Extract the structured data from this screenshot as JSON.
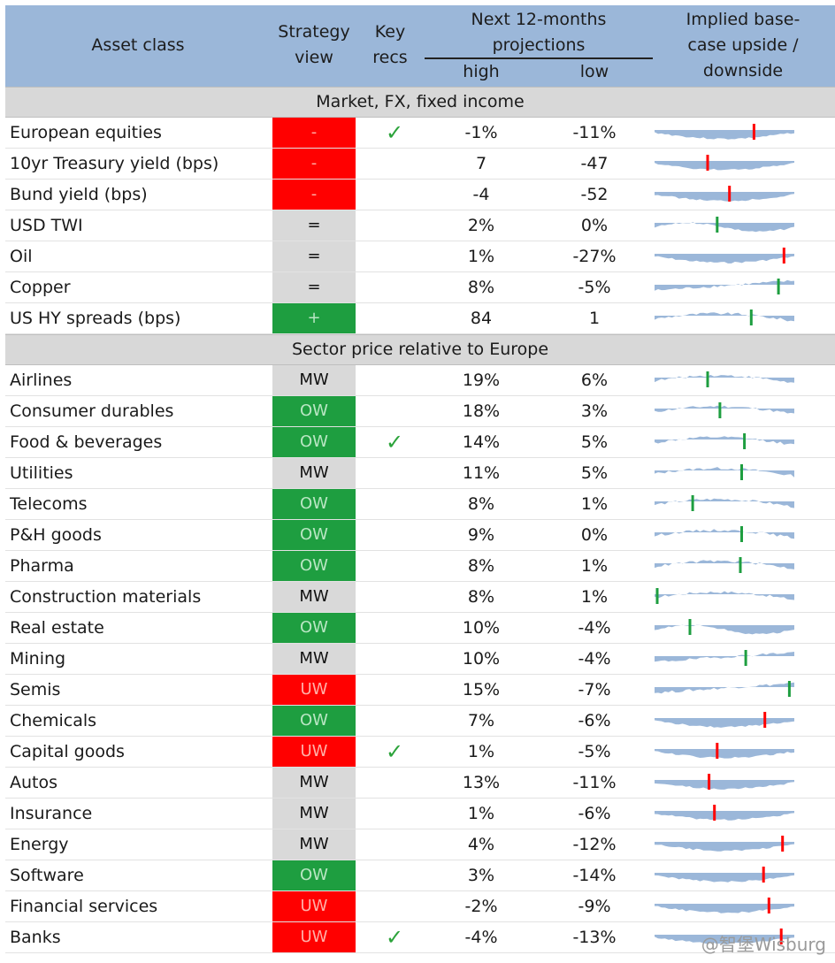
{
  "header": {
    "asset_class": "Asset class",
    "strategy_view": [
      "Strategy",
      "view"
    ],
    "key_recs": [
      "Key",
      "recs"
    ],
    "projections": [
      "Next 12-months",
      "projections"
    ],
    "high": "high",
    "low": "low",
    "implied": [
      "Implied base-",
      "case upside /",
      "downside"
    ]
  },
  "colors": {
    "red": "#ff0000",
    "green": "#1e9e40",
    "grey": "#d9d9d9",
    "header": "#9bb7d9",
    "spark": "#9bb7d9"
  },
  "sections": [
    {
      "title": "Market, FX, fixed income",
      "rows": [
        {
          "name": "European equities",
          "view": "-",
          "color": "red",
          "rec": true,
          "high": "-1%",
          "low": "-11%",
          "marker": 0.72,
          "mcolor": "red",
          "shape": "dn"
        },
        {
          "name": "10yr Treasury yield (bps)",
          "view": "-",
          "color": "red",
          "rec": false,
          "high": "7",
          "low": "-47",
          "marker": 0.38,
          "mcolor": "red",
          "shape": "dn"
        },
        {
          "name": "Bund yield (bps)",
          "view": "-",
          "color": "red",
          "rec": false,
          "high": "-4",
          "low": "-52",
          "marker": 0.54,
          "mcolor": "red",
          "shape": "dn"
        },
        {
          "name": "USD TWI",
          "view": "=",
          "color": "grey",
          "rec": false,
          "high": "2%",
          "low": "0%",
          "marker": 0.45,
          "mcolor": "green",
          "shape": "mix"
        },
        {
          "name": "Oil",
          "view": "=",
          "color": "grey",
          "rec": false,
          "high": "1%",
          "low": "-27%",
          "marker": 0.94,
          "mcolor": "red",
          "shape": "dn"
        },
        {
          "name": "Copper",
          "view": "=",
          "color": "grey",
          "rec": false,
          "high": "8%",
          "low": "-5%",
          "marker": 0.9,
          "mcolor": "green",
          "shape": "upr"
        },
        {
          "name": "US HY spreads (bps)",
          "view": "+",
          "color": "green",
          "rec": false,
          "high": "84",
          "low": "1",
          "marker": 0.7,
          "mcolor": "green",
          "shape": "up"
        }
      ]
    },
    {
      "title": "Sector price relative to Europe",
      "rows": [
        {
          "name": "Airlines",
          "view": "MW",
          "color": "grey",
          "rec": false,
          "high": "19%",
          "low": "6%",
          "marker": 0.38,
          "mcolor": "green",
          "shape": "up"
        },
        {
          "name": "Consumer durables",
          "view": "OW",
          "color": "green",
          "rec": false,
          "high": "18%",
          "low": "3%",
          "marker": 0.47,
          "mcolor": "green",
          "shape": "up"
        },
        {
          "name": "Food & beverages",
          "view": "OW",
          "color": "green",
          "rec": true,
          "high": "14%",
          "low": "5%",
          "marker": 0.65,
          "mcolor": "green",
          "shape": "up"
        },
        {
          "name": "Utilities",
          "view": "MW",
          "color": "grey",
          "rec": false,
          "high": "11%",
          "low": "5%",
          "marker": 0.63,
          "mcolor": "green",
          "shape": "up"
        },
        {
          "name": "Telecoms",
          "view": "OW",
          "color": "green",
          "rec": false,
          "high": "8%",
          "low": "1%",
          "marker": 0.27,
          "mcolor": "green",
          "shape": "up"
        },
        {
          "name": "P&H goods",
          "view": "OW",
          "color": "green",
          "rec": false,
          "high": "9%",
          "low": "0%",
          "marker": 0.63,
          "mcolor": "green",
          "shape": "up"
        },
        {
          "name": "Pharma",
          "view": "OW",
          "color": "green",
          "rec": false,
          "high": "8%",
          "low": "1%",
          "marker": 0.62,
          "mcolor": "green",
          "shape": "up"
        },
        {
          "name": "Construction materials",
          "view": "MW",
          "color": "grey",
          "rec": false,
          "high": "8%",
          "low": "1%",
          "marker": 0.01,
          "mcolor": "green",
          "shape": "up"
        },
        {
          "name": "Real estate",
          "view": "OW",
          "color": "green",
          "rec": false,
          "high": "10%",
          "low": "-4%",
          "marker": 0.25,
          "mcolor": "green",
          "shape": "mix"
        },
        {
          "name": "Mining",
          "view": "MW",
          "color": "grey",
          "rec": false,
          "high": "10%",
          "low": "-4%",
          "marker": 0.66,
          "mcolor": "green",
          "shape": "upr"
        },
        {
          "name": "Semis",
          "view": "UW",
          "color": "red",
          "rec": false,
          "high": "15%",
          "low": "-7%",
          "marker": 0.98,
          "mcolor": "green",
          "shape": "upr"
        },
        {
          "name": "Chemicals",
          "view": "OW",
          "color": "green",
          "rec": false,
          "high": "7%",
          "low": "-6%",
          "marker": 0.8,
          "mcolor": "red",
          "shape": "dn"
        },
        {
          "name": "Capital goods",
          "view": "UW",
          "color": "red",
          "rec": true,
          "high": "1%",
          "low": "-5%",
          "marker": 0.45,
          "mcolor": "red",
          "shape": "dn"
        },
        {
          "name": "Autos",
          "view": "MW",
          "color": "grey",
          "rec": false,
          "high": "13%",
          "low": "-11%",
          "marker": 0.39,
          "mcolor": "red",
          "shape": "dn"
        },
        {
          "name": "Insurance",
          "view": "MW",
          "color": "grey",
          "rec": false,
          "high": "1%",
          "low": "-6%",
          "marker": 0.43,
          "mcolor": "red",
          "shape": "dn"
        },
        {
          "name": "Energy",
          "view": "MW",
          "color": "grey",
          "rec": false,
          "high": "4%",
          "low": "-12%",
          "marker": 0.93,
          "mcolor": "red",
          "shape": "dn"
        },
        {
          "name": "Software",
          "view": "OW",
          "color": "green",
          "rec": false,
          "high": "3%",
          "low": "-14%",
          "marker": 0.79,
          "mcolor": "red",
          "shape": "dn"
        },
        {
          "name": "Financial services",
          "view": "UW",
          "color": "red",
          "rec": false,
          "high": "-2%",
          "low": "-9%",
          "marker": 0.83,
          "mcolor": "red",
          "shape": "dn"
        },
        {
          "name": "Banks",
          "view": "UW",
          "color": "red",
          "rec": true,
          "high": "-4%",
          "low": "-13%",
          "marker": 0.92,
          "mcolor": "red",
          "shape": "dn"
        }
      ]
    }
  ],
  "check_glyph": "✓",
  "watermark": "@智堡Wisburg"
}
